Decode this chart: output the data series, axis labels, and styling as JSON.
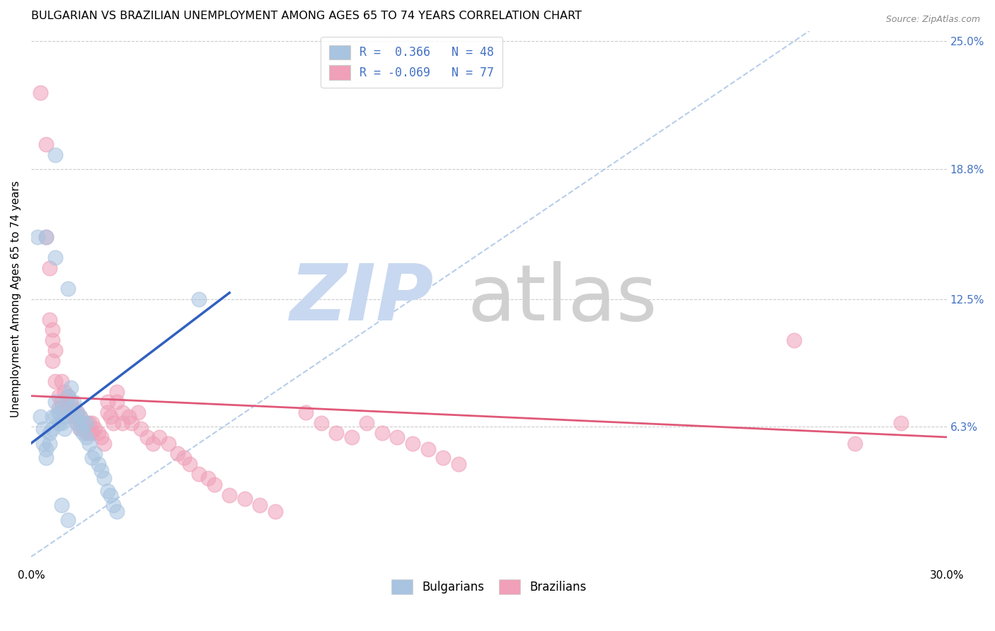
{
  "title": "BULGARIAN VS BRAZILIAN UNEMPLOYMENT AMONG AGES 65 TO 74 YEARS CORRELATION CHART",
  "source": "Source: ZipAtlas.com",
  "ylabel": "Unemployment Among Ages 65 to 74 years",
  "xlim": [
    0.0,
    0.3
  ],
  "ylim": [
    -0.005,
    0.255
  ],
  "ytick_labels_right": [
    "25.0%",
    "18.8%",
    "12.5%",
    "6.3%"
  ],
  "ytick_vals_right": [
    0.25,
    0.188,
    0.125,
    0.063
  ],
  "legend_r_blue": "0.366",
  "legend_n_blue": "48",
  "legend_r_pink": "-0.069",
  "legend_n_pink": "77",
  "blue_color": "#a8c4e0",
  "pink_color": "#f0a0b8",
  "trendline_blue_color": "#3060c0",
  "trendline_pink_color": "#e05878",
  "trendline_diag_color": "#b0c8e8",
  "legend_text_color": "#4472c4",
  "blue_scatter": [
    [
      0.002,
      0.155
    ],
    [
      0.008,
      0.145
    ],
    [
      0.008,
      0.195
    ],
    [
      0.005,
      0.155
    ],
    [
      0.003,
      0.068
    ],
    [
      0.004,
      0.062
    ],
    [
      0.004,
      0.055
    ],
    [
      0.005,
      0.052
    ],
    [
      0.005,
      0.048
    ],
    [
      0.006,
      0.06
    ],
    [
      0.006,
      0.055
    ],
    [
      0.007,
      0.068
    ],
    [
      0.007,
      0.062
    ],
    [
      0.008,
      0.075
    ],
    [
      0.008,
      0.068
    ],
    [
      0.009,
      0.07
    ],
    [
      0.009,
      0.065
    ],
    [
      0.01,
      0.072
    ],
    [
      0.01,
      0.065
    ],
    [
      0.011,
      0.068
    ],
    [
      0.011,
      0.062
    ],
    [
      0.012,
      0.13
    ],
    [
      0.012,
      0.078
    ],
    [
      0.013,
      0.082
    ],
    [
      0.013,
      0.072
    ],
    [
      0.014,
      0.075
    ],
    [
      0.014,
      0.068
    ],
    [
      0.015,
      0.07
    ],
    [
      0.015,
      0.065
    ],
    [
      0.016,
      0.068
    ],
    [
      0.016,
      0.062
    ],
    [
      0.017,
      0.065
    ],
    [
      0.017,
      0.06
    ],
    [
      0.018,
      0.065
    ],
    [
      0.018,
      0.058
    ],
    [
      0.019,
      0.055
    ],
    [
      0.02,
      0.048
    ],
    [
      0.021,
      0.05
    ],
    [
      0.022,
      0.045
    ],
    [
      0.023,
      0.042
    ],
    [
      0.024,
      0.038
    ],
    [
      0.025,
      0.032
    ],
    [
      0.026,
      0.03
    ],
    [
      0.027,
      0.025
    ],
    [
      0.028,
      0.022
    ],
    [
      0.01,
      0.025
    ],
    [
      0.012,
      0.018
    ],
    [
      0.055,
      0.125
    ]
  ],
  "pink_scatter": [
    [
      0.003,
      0.225
    ],
    [
      0.005,
      0.2
    ],
    [
      0.005,
      0.155
    ],
    [
      0.006,
      0.14
    ],
    [
      0.006,
      0.115
    ],
    [
      0.007,
      0.105
    ],
    [
      0.007,
      0.095
    ],
    [
      0.007,
      0.11
    ],
    [
      0.008,
      0.1
    ],
    [
      0.008,
      0.085
    ],
    [
      0.009,
      0.078
    ],
    [
      0.009,
      0.072
    ],
    [
      0.01,
      0.085
    ],
    [
      0.01,
      0.075
    ],
    [
      0.011,
      0.08
    ],
    [
      0.011,
      0.072
    ],
    [
      0.012,
      0.078
    ],
    [
      0.012,
      0.072
    ],
    [
      0.013,
      0.075
    ],
    [
      0.013,
      0.07
    ],
    [
      0.014,
      0.072
    ],
    [
      0.014,
      0.068
    ],
    [
      0.015,
      0.07
    ],
    [
      0.015,
      0.065
    ],
    [
      0.016,
      0.068
    ],
    [
      0.016,
      0.062
    ],
    [
      0.017,
      0.065
    ],
    [
      0.017,
      0.062
    ],
    [
      0.018,
      0.065
    ],
    [
      0.018,
      0.06
    ],
    [
      0.019,
      0.065
    ],
    [
      0.019,
      0.06
    ],
    [
      0.02,
      0.065
    ],
    [
      0.02,
      0.06
    ],
    [
      0.021,
      0.062
    ],
    [
      0.022,
      0.06
    ],
    [
      0.023,
      0.058
    ],
    [
      0.024,
      0.055
    ],
    [
      0.025,
      0.075
    ],
    [
      0.025,
      0.07
    ],
    [
      0.026,
      0.068
    ],
    [
      0.027,
      0.065
    ],
    [
      0.028,
      0.08
    ],
    [
      0.028,
      0.075
    ],
    [
      0.03,
      0.07
    ],
    [
      0.03,
      0.065
    ],
    [
      0.032,
      0.068
    ],
    [
      0.033,
      0.065
    ],
    [
      0.035,
      0.07
    ],
    [
      0.036,
      0.062
    ],
    [
      0.038,
      0.058
    ],
    [
      0.04,
      0.055
    ],
    [
      0.042,
      0.058
    ],
    [
      0.045,
      0.055
    ],
    [
      0.048,
      0.05
    ],
    [
      0.05,
      0.048
    ],
    [
      0.052,
      0.045
    ],
    [
      0.055,
      0.04
    ],
    [
      0.058,
      0.038
    ],
    [
      0.06,
      0.035
    ],
    [
      0.065,
      0.03
    ],
    [
      0.07,
      0.028
    ],
    [
      0.075,
      0.025
    ],
    [
      0.08,
      0.022
    ],
    [
      0.09,
      0.07
    ],
    [
      0.095,
      0.065
    ],
    [
      0.1,
      0.06
    ],
    [
      0.105,
      0.058
    ],
    [
      0.11,
      0.065
    ],
    [
      0.115,
      0.06
    ],
    [
      0.12,
      0.058
    ],
    [
      0.125,
      0.055
    ],
    [
      0.13,
      0.052
    ],
    [
      0.135,
      0.048
    ],
    [
      0.14,
      0.045
    ],
    [
      0.25,
      0.105
    ],
    [
      0.27,
      0.055
    ],
    [
      0.285,
      0.065
    ]
  ],
  "blue_trend_x": [
    0.0,
    0.065
  ],
  "blue_trend_y": [
    0.055,
    0.128
  ],
  "pink_trend_x": [
    0.0,
    0.3
  ],
  "pink_trend_y": [
    0.078,
    0.058
  ],
  "diag_trend_x": [
    0.0,
    0.255
  ],
  "diag_trend_y": [
    0.0,
    0.255
  ]
}
